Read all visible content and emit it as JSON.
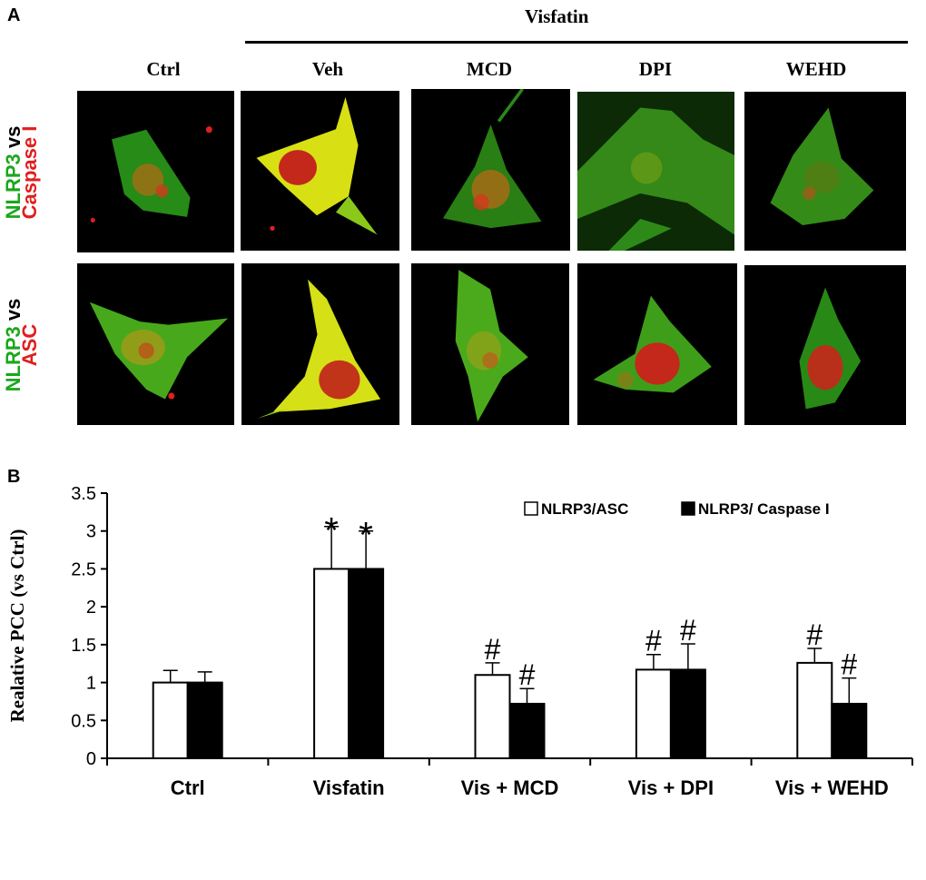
{
  "panel_a": {
    "letter": "A",
    "group_label": "Visfatin",
    "columns": [
      "Ctrl",
      "Veh",
      "MCD",
      "DPI",
      "WEHD"
    ],
    "rows": [
      {
        "green": "NLRP3",
        "mid": " vs",
        "red": "Caspase I"
      },
      {
        "green": "NLRP3",
        "mid": " vs",
        "red": "ASC"
      }
    ]
  },
  "panel_b": {
    "letter": "B",
    "colors": {
      "asc_fill": "#ffffff",
      "caspase_fill": "#000000",
      "axis": "#000000"
    },
    "marks": [
      {
        "asc": "",
        "caspase": ""
      },
      {
        "asc": "*",
        "caspase": "*"
      },
      {
        "asc": "#",
        "caspase": "#"
      },
      {
        "asc": "#",
        "caspase": "#"
      },
      {
        "asc": "#",
        "caspase": "#"
      }
    ]
  },
  "chart_data": {
    "type": "bar",
    "title": "",
    "xlabel": "",
    "ylabel": "Realative PCC  (vs Ctrl)",
    "ylim": [
      0,
      3.5
    ],
    "yticks": [
      "0",
      "0.5",
      "1",
      "1.5",
      "2",
      "2.5",
      "3",
      "3.5"
    ],
    "categories": [
      "Ctrl",
      "Visfatin",
      "Vis + MCD",
      "Vis + DPI",
      "Vis + WEHD"
    ],
    "legend_position": "top-right",
    "series": [
      {
        "name": "NLRP3/ASC",
        "values": [
          1.0,
          2.5,
          1.1,
          1.17,
          1.26
        ],
        "errors": [
          0.16,
          0.56,
          0.16,
          0.2,
          0.19
        ]
      },
      {
        "name": "NLRP3/ Caspase I",
        "values": [
          1.0,
          2.5,
          0.72,
          1.17,
          0.72
        ],
        "errors": [
          0.14,
          0.5,
          0.2,
          0.34,
          0.34
        ]
      }
    ]
  }
}
